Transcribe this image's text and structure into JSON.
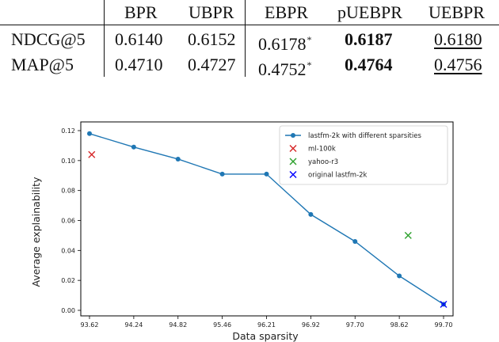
{
  "table": {
    "columns": [
      "BPR",
      "UBPR",
      "EBPR",
      "pUEBPR",
      "UEBPR"
    ],
    "rows": [
      {
        "label": "NDCG@5",
        "values": [
          "0.6140",
          "0.6152",
          "0.6178",
          "0.6187",
          "0.6180"
        ],
        "ebpr_marker": "*"
      },
      {
        "label": "MAP@5",
        "values": [
          "0.4710",
          "0.4727",
          "0.4752",
          "0.4764",
          "0.4756"
        ],
        "ebpr_marker": "*"
      }
    ],
    "best_column": "pUEBPR",
    "second_best_column": "UEBPR"
  },
  "chart_data": {
    "type": "line",
    "xlabel": "Data sparsity",
    "ylabel": "Average explainability",
    "x_ticks": [
      "93.62",
      "94.24",
      "94.82",
      "95.46",
      "96.21",
      "96.92",
      "97.70",
      "98.62",
      "99.70"
    ],
    "y_ticks": [
      "0.00",
      "0.02",
      "0.04",
      "0.06",
      "0.08",
      "0.10",
      "0.12"
    ],
    "ylim": [
      0,
      0.125
    ],
    "series": [
      {
        "name": "lastfm-2k with different sparsities",
        "color": "#1f77b4",
        "marker": "circle",
        "x": [
          "93.62",
          "94.24",
          "94.82",
          "95.46",
          "96.21",
          "96.92",
          "97.70",
          "98.62",
          "99.70"
        ],
        "y": [
          0.118,
          0.109,
          0.101,
          0.091,
          0.091,
          0.064,
          0.046,
          0.023,
          0.004
        ]
      }
    ],
    "points": [
      {
        "name": "ml-100k",
        "color": "#d62728",
        "marker": "x",
        "x_pos": 0.05,
        "y": 0.104
      },
      {
        "name": "yahoo-r3",
        "color": "#2ca02c",
        "marker": "x",
        "x_pos": 7.2,
        "y": 0.05
      },
      {
        "name": "original lastfm-2k",
        "color": "#0000ff",
        "marker": "x",
        "x_pos": 8.0,
        "y": 0.004
      }
    ],
    "legend_position": "top-right",
    "grid": false
  }
}
